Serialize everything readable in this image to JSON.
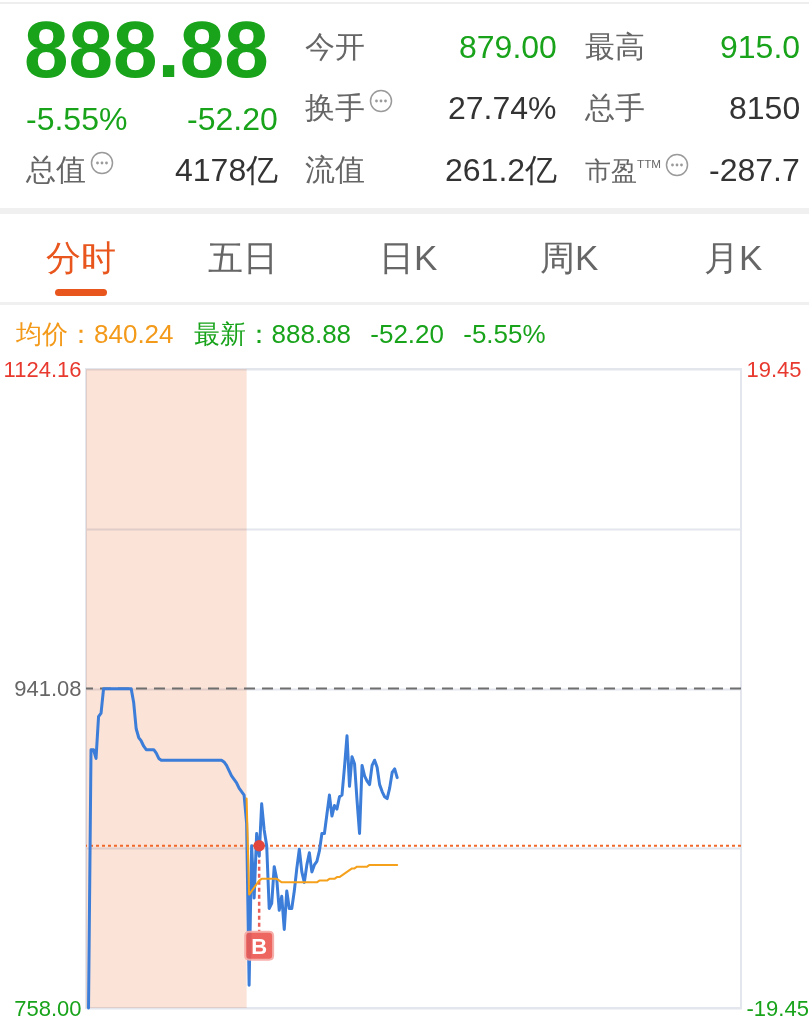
{
  "chart_data": [
    {
      "type": "other",
      "annotations": [
        "888.88",
        "-5.55%",
        "-52.20",
        "今开",
        "879.00",
        "最高",
        "915.0",
        "换手",
        "27.74%",
        "总手",
        "8150",
        "总值",
        "4178亿",
        "流值",
        "261.2亿",
        "市盈$^{TTM}$",
        "-287.7",
        "分时",
        "五日",
        "日K",
        "周K",
        "月K"
      ]
    },
    {
      "type": "line",
      "annotations": [
        "均价：840.24",
        "最新：888.88 -52.20 -5.55%",
        "B"
      ],
      "categories": [
        null,
        null,
        null,
        null,
        null,
        null,
        null,
        null,
        null,
        null,
        null,
        null,
        null,
        null,
        null,
        null,
        null,
        null,
        null,
        null,
        null,
        null,
        null,
        null,
        null,
        null,
        null,
        null,
        null,
        null,
        null,
        null,
        null,
        null,
        null,
        null,
        null,
        null,
        null,
        null,
        null,
        null,
        null,
        null,
        null,
        null,
        null,
        null,
        null,
        null,
        null,
        null,
        null,
        null,
        null,
        null,
        null,
        null,
        null,
        null,
        null,
        null,
        null,
        null,
        null,
        null,
        null,
        null,
        null,
        null,
        null,
        null,
        null,
        null,
        null,
        null,
        null,
        null,
        null,
        null,
        null,
        null,
        null,
        null,
        null,
        null,
        null,
        null,
        null,
        null,
        null,
        null,
        null,
        null,
        null,
        null,
        null,
        null,
        null,
        null,
        null,
        null,
        null,
        null,
        null,
        null,
        null,
        null,
        null,
        null,
        null,
        null,
        null,
        null,
        null,
        null,
        null,
        null,
        null,
        null,
        null,
        null,
        null,
        null,
        null,
        null,
        null,
        null,
        null,
        null,
        null,
        null,
        null,
        null,
        null,
        null,
        null,
        null,
        null,
        null,
        null,
        null,
        null,
        null,
        null,
        null,
        null,
        null,
        null,
        null,
        null,
        null,
        null,
        null,
        null,
        null,
        null,
        null,
        null,
        null,
        null,
        null,
        null,
        null,
        null,
        null,
        null,
        null,
        null,
        null,
        null,
        null,
        null,
        null,
        null,
        null,
        null,
        null,
        null,
        null,
        null,
        null,
        null,
        null,
        null,
        null,
        null,
        null,
        null,
        null,
        null,
        null,
        null,
        null,
        null,
        null,
        null,
        null,
        null,
        null,
        null,
        null,
        null,
        null,
        null,
        null,
        null,
        null,
        null,
        null,
        null,
        null,
        null,
        null,
        null,
        null,
        null,
        null,
        null,
        null,
        null,
        null,
        null,
        null,
        null,
        null,
        null,
        null,
        null,
        null,
        null,
        null,
        null,
        null,
        null,
        null,
        null,
        null,
        null,
        null,
        null,
        null,
        null,
        null,
        null,
        null,
        null,
        null,
        null,
        null,
        null,
        null,
        null,
        null,
        null,
        null,
        null,
        null,
        null,
        null,
        null,
        null
      ],
      "series": [
        {
          "color": "#3b7dd8",
          "values": [
            null,
            758,
            906,
            906,
            901,
            925,
            927,
            941,
            941,
            941,
            941,
            941,
            941,
            941,
            941,
            941,
            941,
            941,
            941,
            933,
            918,
            913,
            911,
            908,
            906,
            906,
            906,
            906,
            904,
            901,
            900,
            900,
            900,
            900,
            900,
            900,
            900,
            900,
            900,
            900,
            900,
            900,
            900,
            900,
            900,
            900,
            900,
            900,
            900,
            900,
            900,
            900,
            900,
            900,
            900,
            899,
            897,
            894,
            891,
            889,
            887,
            884,
            882,
            880,
            864,
            771,
            851,
            821,
            858,
            845,
            875,
            860,
            851,
            815,
            818,
            839,
            832,
            814,
            822,
            803,
            825,
            815,
            815,
            825,
            838,
            849,
            836,
            830,
            840,
            847,
            836,
            840,
            842,
            848,
            858,
            858,
            869,
            880,
            868,
            874,
            872,
            879,
            880,
            896,
            914,
            885,
            902,
            898,
            877,
            858,
            897,
            891,
            888,
            886,
            897,
            900,
            896,
            886,
            882,
            879,
            878,
            884,
            893,
            895,
            890,
            null,
            null,
            null,
            null,
            null,
            null,
            null,
            null,
            null,
            null,
            null,
            null,
            null,
            null,
            null,
            null,
            null,
            null,
            null,
            null,
            null,
            null,
            null,
            null,
            null,
            null,
            null,
            null,
            null,
            null,
            null,
            null,
            null,
            null,
            null,
            null,
            null,
            null,
            null,
            null,
            null,
            null,
            null,
            null,
            null,
            null,
            null,
            null,
            null,
            null,
            null,
            null,
            null,
            null,
            null,
            null,
            null,
            null,
            null,
            null,
            null,
            null,
            null,
            null,
            null,
            null,
            null,
            null,
            null,
            null,
            null,
            null,
            null,
            null,
            null,
            null,
            null,
            null,
            null,
            null,
            null,
            null,
            null,
            null,
            null,
            null,
            null,
            null,
            null,
            null,
            null,
            null,
            null,
            null,
            null,
            null,
            null,
            null,
            null,
            null,
            null,
            null,
            null,
            null,
            null,
            null,
            null,
            null,
            null,
            null,
            null,
            null,
            null,
            null,
            null,
            null,
            null,
            null,
            null,
            null,
            null,
            null,
            null,
            null,
            null,
            null,
            null,
            null,
            null,
            null,
            null,
            null,
            null,
            null,
            null,
            null,
            null
          ]
        },
        {
          "color": "#f5a11c",
          "values": [
            null,
            null,
            null,
            null,
            null,
            null,
            null,
            null,
            null,
            null,
            null,
            null,
            null,
            null,
            null,
            null,
            null,
            null,
            null,
            null,
            null,
            null,
            null,
            null,
            null,
            null,
            null,
            null,
            null,
            null,
            null,
            null,
            null,
            null,
            null,
            null,
            null,
            null,
            null,
            null,
            null,
            null,
            null,
            null,
            null,
            null,
            null,
            null,
            null,
            null,
            null,
            null,
            null,
            null,
            null,
            null,
            null,
            null,
            null,
            null,
            null,
            null,
            null,
            null,
            878,
            823,
            825,
            827,
            829,
            831,
            832,
            832,
            832,
            832,
            832,
            832,
            832,
            831,
            830,
            830,
            830,
            830,
            830,
            830,
            830,
            830,
            830,
            830,
            830,
            830,
            830,
            830,
            830,
            831,
            831,
            831,
            831,
            832,
            832,
            832,
            833,
            833,
            834,
            835,
            836,
            837,
            838,
            838,
            839,
            839,
            839,
            839,
            839,
            840,
            840,
            840,
            840,
            840,
            840,
            840,
            840,
            840,
            840,
            840,
            840,
            null,
            null,
            null,
            null,
            null,
            null,
            null,
            null,
            null,
            null,
            null,
            null,
            null,
            null,
            null,
            null,
            null,
            null,
            null,
            null,
            null,
            null,
            null,
            null,
            null,
            null,
            null,
            null,
            null,
            null,
            null,
            null,
            null,
            null,
            null,
            null,
            null,
            null,
            null,
            null,
            null,
            null,
            null,
            null,
            null,
            null,
            null,
            null,
            null,
            null,
            null,
            null,
            null,
            null,
            null,
            null,
            null,
            null,
            null,
            null,
            null,
            null,
            null,
            null,
            null,
            null,
            null,
            null,
            null,
            null,
            null,
            null,
            null,
            null,
            null,
            null,
            null,
            null,
            null,
            null,
            null,
            null,
            null,
            null,
            null,
            null,
            null,
            null,
            null,
            null,
            null,
            null,
            null,
            null,
            null,
            null,
            null,
            null,
            null,
            null,
            null,
            null,
            null,
            null,
            null,
            null,
            null,
            null,
            null,
            null,
            null,
            null,
            null,
            null,
            null,
            null,
            null,
            null,
            null,
            null,
            null,
            null,
            null,
            null,
            null,
            null,
            null,
            null,
            null,
            null,
            null,
            null,
            null,
            null,
            null,
            null,
            null
          ]
        },
        {
          "type": "scatter",
          "color": "#e2463c",
          "values": [
            null,
            null,
            null,
            null,
            null,
            null,
            null,
            null,
            null,
            null,
            null,
            null,
            null,
            null,
            null,
            null,
            null,
            null,
            null,
            null,
            null,
            null,
            null,
            null,
            null,
            null,
            null,
            null,
            null,
            null,
            null,
            null,
            null,
            null,
            null,
            null,
            null,
            null,
            null,
            null,
            null,
            null,
            null,
            null,
            null,
            null,
            null,
            null,
            null,
            null,
            null,
            null,
            null,
            null,
            null,
            null,
            null,
            null,
            null,
            null,
            null,
            null,
            null,
            null,
            null,
            null,
            null,
            null,
            null,
            851,
            null,
            null,
            null,
            null,
            null,
            null,
            null,
            null,
            null,
            null,
            null,
            null,
            null,
            null,
            null,
            null,
            null,
            null,
            null,
            null,
            null,
            null,
            null,
            null,
            null,
            null,
            null,
            null,
            null,
            null,
            null,
            null,
            null,
            null,
            null,
            null,
            null,
            null,
            null,
            null,
            null,
            null,
            null,
            null,
            null,
            null,
            null,
            null,
            null,
            null,
            null,
            null,
            null,
            null,
            null,
            null,
            null,
            null,
            null,
            null,
            null,
            null,
            null,
            null,
            null,
            null,
            null,
            null,
            null,
            null,
            null,
            null,
            null,
            null,
            null,
            null,
            null,
            null,
            null,
            null,
            null,
            null,
            null,
            null,
            null,
            null,
            null,
            null,
            null,
            null,
            null,
            null,
            null,
            null,
            null,
            null,
            null,
            null,
            null,
            null,
            null,
            null,
            null,
            null,
            null,
            null,
            null,
            null,
            null,
            null,
            null,
            null,
            null,
            null,
            null,
            null,
            null,
            null,
            null,
            null,
            null,
            null,
            null,
            null,
            null,
            null,
            null,
            null,
            null,
            null,
            null,
            null,
            null,
            null,
            null,
            null,
            null,
            null,
            null,
            null,
            null,
            null,
            null,
            null,
            null,
            null,
            null,
            null,
            null,
            null,
            null,
            null,
            null,
            null,
            null,
            null,
            null,
            null,
            null,
            null,
            null,
            null,
            null,
            null,
            null,
            null,
            null,
            null,
            null,
            null,
            null,
            null,
            null,
            null,
            null,
            null,
            null,
            null,
            null,
            null,
            null,
            null,
            null,
            null,
            null,
            null,
            null,
            null,
            null,
            null,
            null,
            null
          ]
        }
      ],
      "ylim": [
        758,
        1124.16
      ],
      "yticks": [
        {
          "value": 758,
          "label": "758.00"
        },
        {
          "value": 849.54,
          "label": null
        },
        941.08,
        {
          "value": 1032.62,
          "label": null
        },
        1124.16
      ],
      "y2lim": [
        -19.45,
        19.45
      ],
      "y2ticks": [
        -19.45,
        19.45
      ],
      "ref_lines": [
        {
          "axis": "y",
          "value": 941.08,
          "color": "#6e6e6e",
          "line_style": "dashed"
        },
        {
          "axis": "y",
          "value": 851,
          "color": "#f0692a",
          "line_style": "dotted"
        }
      ],
      "grid": "y"
    }
  ]
}
